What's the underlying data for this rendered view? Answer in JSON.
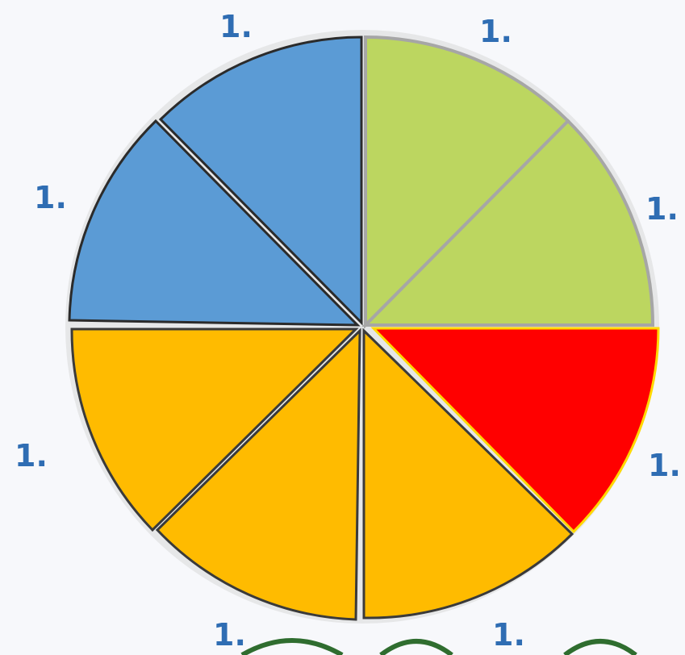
{
  "diagram": {
    "segments": [
      {
        "name": "segment-green-top",
        "color": "#bcd660",
        "stroke": "#a6a6a6"
      },
      {
        "name": "segment-green-right",
        "color": "#bcd660",
        "stroke": "#a6a6a6"
      },
      {
        "name": "segment-red",
        "color": "#ff0000",
        "stroke": "#ffd800"
      },
      {
        "name": "segment-orange-1",
        "color": "#ffbb00",
        "stroke": "#3a3a3a"
      },
      {
        "name": "segment-orange-2",
        "color": "#ffbb00",
        "stroke": "#3a3a3a"
      },
      {
        "name": "segment-orange-3",
        "color": "#ffbb00",
        "stroke": "#3a3a3a"
      },
      {
        "name": "segment-blue-left",
        "color": "#5b9bd5",
        "stroke": "#2b2b2b"
      },
      {
        "name": "segment-blue-top",
        "color": "#5b9bd5",
        "stroke": "#2b2b2b"
      }
    ],
    "labels": [
      "1.",
      "1.",
      "1.",
      "1.",
      "1.",
      "1.",
      "1.",
      "1."
    ]
  }
}
